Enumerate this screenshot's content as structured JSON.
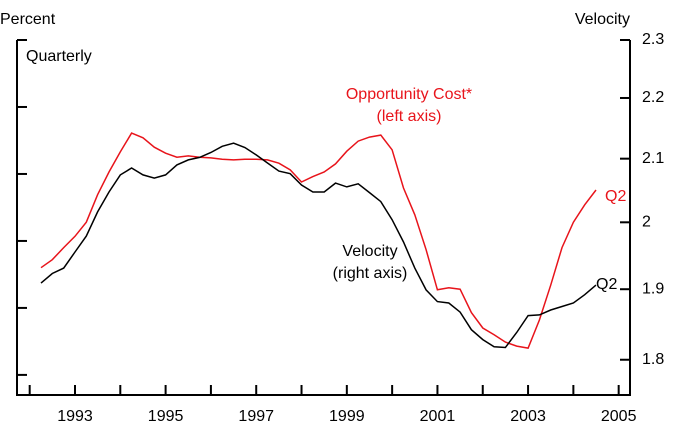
{
  "chart_data": {
    "type": "line",
    "y_label": "Percent",
    "y2_label": "Velocity",
    "subtitle": "Quarterly",
    "x": [
      1992.25,
      1992.5,
      1992.75,
      1993,
      1993.25,
      1993.5,
      1993.75,
      1994,
      1994.25,
      1994.5,
      1994.75,
      1995,
      1995.25,
      1995.5,
      1995.75,
      1996,
      1996.25,
      1996.5,
      1996.75,
      1997,
      1997.25,
      1997.5,
      1997.75,
      1998,
      1998.25,
      1998.5,
      1998.75,
      1999,
      1999.25,
      1999.5,
      1999.75,
      2000,
      2000.25,
      2000.5,
      2000.75,
      2001,
      2001.25,
      2001.5,
      2001.75,
      2002,
      2002.25,
      2002.5,
      2002.75,
      2003,
      2003.25,
      2003.5,
      2003.75,
      2004,
      2004.25,
      2004.5
    ],
    "series": [
      {
        "name": "Opportunity Cost*",
        "axis": "y",
        "color": "#e8141b",
        "values": [
          2.6,
          2.72,
          2.9,
          3.07,
          3.28,
          3.69,
          4.03,
          4.33,
          4.61,
          4.54,
          4.4,
          4.31,
          4.25,
          4.27,
          4.25,
          4.24,
          4.22,
          4.21,
          4.22,
          4.22,
          4.21,
          4.16,
          4.06,
          3.88,
          3.96,
          4.03,
          4.15,
          4.34,
          4.49,
          4.55,
          4.58,
          4.36,
          3.79,
          3.39,
          2.87,
          2.27,
          2.3,
          2.28,
          1.93,
          1.7,
          1.6,
          1.49,
          1.43,
          1.4,
          1.82,
          2.34,
          2.9,
          3.28,
          3.54,
          3.76
        ]
      },
      {
        "name": "Velocity",
        "axis": "y2",
        "color": "#000000",
        "values": [
          1.909,
          1.923,
          1.931,
          1.955,
          1.979,
          2.016,
          2.047,
          2.074,
          2.085,
          2.074,
          2.069,
          2.074,
          2.09,
          2.098,
          2.102,
          2.11,
          2.12,
          2.125,
          2.118,
          2.106,
          2.093,
          2.08,
          2.076,
          2.058,
          2.047,
          2.047,
          2.061,
          2.055,
          2.06,
          2.046,
          2.032,
          2.004,
          1.97,
          1.931,
          1.899,
          1.882,
          1.88,
          1.867,
          1.842,
          1.828,
          1.818,
          1.817,
          1.838,
          1.862,
          1.863,
          1.87,
          1.875,
          1.88,
          1.892,
          1.906
        ]
      }
    ],
    "annotations": [
      {
        "text": "Opportunity Cost*",
        "color": "#e8141b"
      },
      {
        "text": "(left axis)",
        "color": "#e8141b"
      },
      {
        "text": "Velocity",
        "color": "#000000"
      },
      {
        "text": "(right axis)",
        "color": "#000000"
      },
      {
        "text": "Q2",
        "color": "#e8141b"
      },
      {
        "text": "Q2",
        "color": "#000000"
      }
    ],
    "xlim": [
      1991.72,
      2005.25
    ],
    "xticks": [
      1993,
      1995,
      1997,
      1999,
      2001,
      2003,
      2005
    ],
    "xticks_minor": [
      1992,
      1994,
      1996,
      1998,
      2000,
      2002,
      2004
    ],
    "ylim": [
      0.7,
      6
    ],
    "yticks": [
      1,
      2,
      3,
      4,
      5,
      6
    ],
    "y2lim": [
      1.752,
      2.3
    ],
    "y2ticks": [
      1.8,
      1.9,
      2.0,
      2.1,
      2.2,
      2.3
    ],
    "y2_log": true,
    "grid": false
  }
}
